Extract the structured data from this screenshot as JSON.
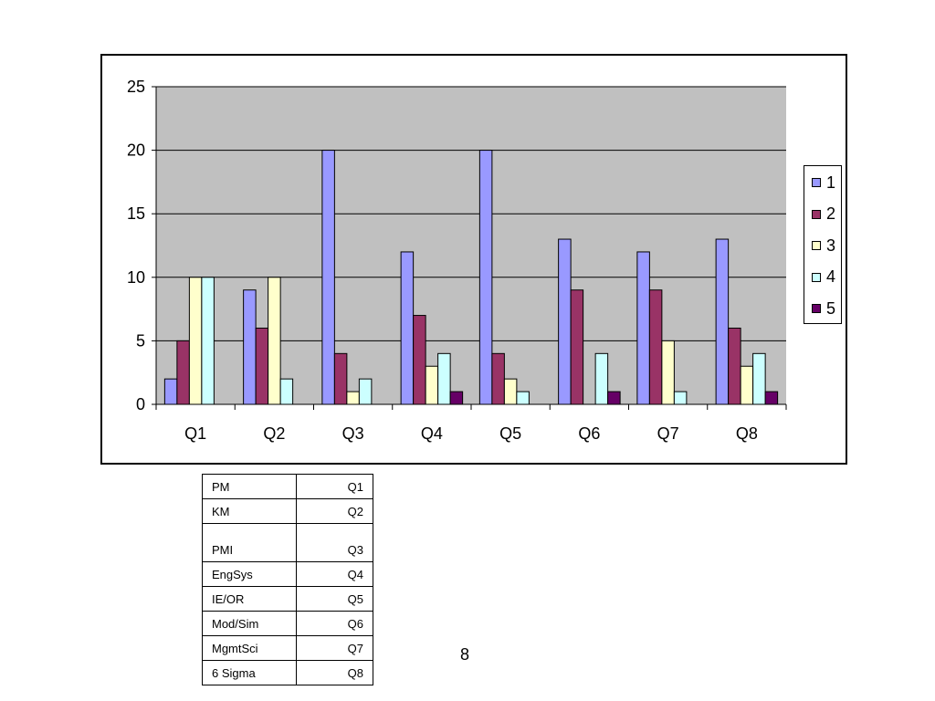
{
  "chart_data": {
    "type": "bar",
    "categories": [
      "Q1",
      "Q2",
      "Q3",
      "Q4",
      "Q5",
      "Q6",
      "Q7",
      "Q8"
    ],
    "series": [
      {
        "name": "1",
        "color": "#9999ff",
        "values": [
          2,
          9,
          20,
          12,
          20,
          13,
          12,
          13
        ]
      },
      {
        "name": "2",
        "color": "#993366",
        "values": [
          5,
          6,
          4,
          7,
          4,
          9,
          9,
          6
        ]
      },
      {
        "name": "3",
        "color": "#ffffcc",
        "values": [
          10,
          10,
          1,
          3,
          2,
          0,
          5,
          3
        ]
      },
      {
        "name": "4",
        "color": "#ccffff",
        "values": [
          10,
          2,
          2,
          4,
          1,
          4,
          1,
          4
        ]
      },
      {
        "name": "5",
        "color": "#660066",
        "values": [
          0,
          0,
          0,
          1,
          0,
          1,
          0,
          1
        ]
      }
    ],
    "ylim": [
      0,
      25
    ],
    "yticks": [
      0,
      5,
      10,
      15,
      20,
      25
    ],
    "grid": true,
    "plot_background": "#c0c0c0",
    "legend_position": "right",
    "title": "",
    "xlabel": "",
    "ylabel": ""
  },
  "key_table": {
    "rows": [
      {
        "name": "PM",
        "code": "Q1"
      },
      {
        "name": "KM",
        "code": "Q2"
      },
      {
        "name": "PMI",
        "code": "Q3"
      },
      {
        "name": "EngSys",
        "code": "Q4"
      },
      {
        "name": "IE/OR",
        "code": "Q5"
      },
      {
        "name": "Mod/Sim",
        "code": "Q6"
      },
      {
        "name": "MgmtSci",
        "code": "Q7"
      },
      {
        "name": "6 Sigma",
        "code": "Q8"
      }
    ]
  },
  "page_number": "8"
}
